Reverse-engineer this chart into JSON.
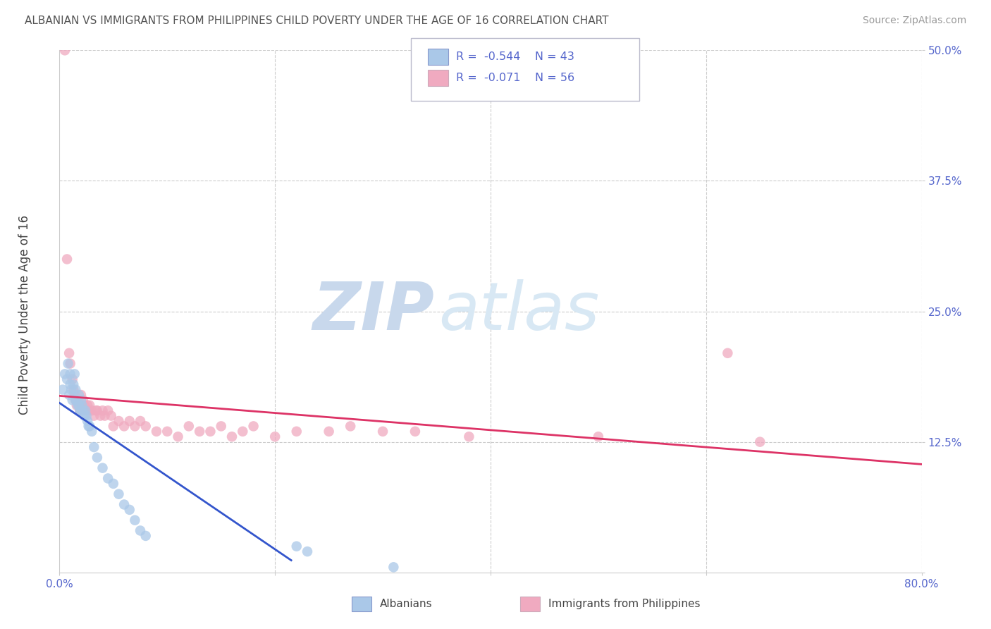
{
  "title": "ALBANIAN VS IMMIGRANTS FROM PHILIPPINES CHILD POVERTY UNDER THE AGE OF 16 CORRELATION CHART",
  "source": "Source: ZipAtlas.com",
  "ylabel": "Child Poverty Under the Age of 16",
  "xlim": [
    0.0,
    0.8
  ],
  "ylim": [
    0.0,
    0.5
  ],
  "xticks": [
    0.0,
    0.2,
    0.4,
    0.6,
    0.8
  ],
  "xticklabels_show": [
    "0.0%",
    "",
    "",
    "",
    "80.0%"
  ],
  "yticks": [
    0.0,
    0.125,
    0.25,
    0.375,
    0.5
  ],
  "yticklabels": [
    "",
    "12.5%",
    "25.0%",
    "37.5%",
    "50.0%"
  ],
  "R_albanian": -0.544,
  "N_albanian": 43,
  "R_philippines": -0.071,
  "N_philippines": 56,
  "color_albanian": "#aac8e8",
  "color_philippines": "#f0aac0",
  "color_line_albanian": "#3355cc",
  "color_line_philippines": "#dd3366",
  "watermark_zip_color": "#c8d8ec",
  "watermark_atlas_color": "#d8e8f4",
  "background_color": "#ffffff",
  "grid_color": "#cccccc",
  "title_color": "#555555",
  "tick_color": "#5566cc",
  "albanian_x": [
    0.003,
    0.005,
    0.007,
    0.008,
    0.009,
    0.01,
    0.01,
    0.011,
    0.012,
    0.013,
    0.014,
    0.015,
    0.015,
    0.016,
    0.017,
    0.018,
    0.018,
    0.019,
    0.02,
    0.02,
    0.021,
    0.022,
    0.023,
    0.024,
    0.025,
    0.026,
    0.027,
    0.028,
    0.03,
    0.032,
    0.035,
    0.04,
    0.045,
    0.05,
    0.055,
    0.06,
    0.065,
    0.07,
    0.075,
    0.08,
    0.22,
    0.23,
    0.31
  ],
  "albanian_y": [
    0.175,
    0.19,
    0.185,
    0.2,
    0.17,
    0.18,
    0.19,
    0.175,
    0.165,
    0.18,
    0.19,
    0.175,
    0.165,
    0.165,
    0.16,
    0.17,
    0.16,
    0.155,
    0.165,
    0.155,
    0.16,
    0.155,
    0.15,
    0.155,
    0.15,
    0.145,
    0.14,
    0.14,
    0.135,
    0.12,
    0.11,
    0.1,
    0.09,
    0.085,
    0.075,
    0.065,
    0.06,
    0.05,
    0.04,
    0.035,
    0.025,
    0.02,
    0.005
  ],
  "philippines_x": [
    0.005,
    0.007,
    0.009,
    0.01,
    0.012,
    0.013,
    0.014,
    0.015,
    0.016,
    0.017,
    0.018,
    0.019,
    0.02,
    0.021,
    0.022,
    0.023,
    0.025,
    0.026,
    0.027,
    0.028,
    0.03,
    0.032,
    0.034,
    0.035,
    0.038,
    0.04,
    0.042,
    0.045,
    0.048,
    0.05,
    0.055,
    0.06,
    0.065,
    0.07,
    0.075,
    0.08,
    0.09,
    0.1,
    0.11,
    0.12,
    0.13,
    0.14,
    0.15,
    0.16,
    0.17,
    0.18,
    0.2,
    0.22,
    0.25,
    0.27,
    0.3,
    0.33,
    0.38,
    0.62,
    0.65,
    0.5
  ],
  "philippines_y": [
    0.5,
    0.3,
    0.21,
    0.2,
    0.185,
    0.175,
    0.17,
    0.165,
    0.16,
    0.165,
    0.16,
    0.155,
    0.17,
    0.16,
    0.165,
    0.16,
    0.155,
    0.16,
    0.155,
    0.16,
    0.155,
    0.15,
    0.155,
    0.155,
    0.15,
    0.155,
    0.15,
    0.155,
    0.15,
    0.14,
    0.145,
    0.14,
    0.145,
    0.14,
    0.145,
    0.14,
    0.135,
    0.135,
    0.13,
    0.14,
    0.135,
    0.135,
    0.14,
    0.13,
    0.135,
    0.14,
    0.13,
    0.135,
    0.135,
    0.14,
    0.135,
    0.135,
    0.13,
    0.21,
    0.125,
    0.13
  ]
}
